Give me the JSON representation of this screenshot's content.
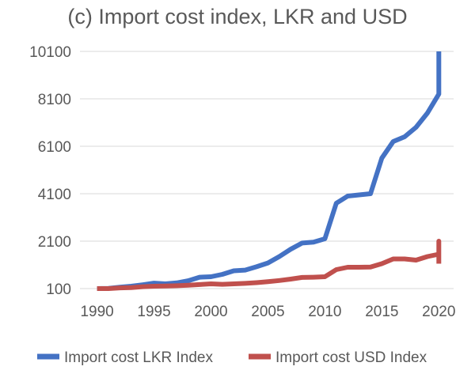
{
  "chart_data": {
    "type": "line",
    "title": "(c) Import cost index, LKR and USD",
    "xlabel": "",
    "ylabel": "",
    "x_ticks": [
      1990,
      1995,
      2000,
      2005,
      2010,
      2015,
      2020
    ],
    "y_ticks": [
      100,
      2100,
      4100,
      6100,
      8100,
      10100
    ],
    "xlim": [
      1988.5,
      2021.3
    ],
    "ylim": [
      100,
      10100
    ],
    "grid": true,
    "legend_position": "bottom",
    "series": [
      {
        "name": "Import cost LKR Index",
        "color": "#4472c4",
        "points": [
          [
            1990,
            100
          ],
          [
            1991,
            110
          ],
          [
            1992,
            160
          ],
          [
            1993,
            200
          ],
          [
            1994,
            260
          ],
          [
            1995,
            330
          ],
          [
            1996,
            300
          ],
          [
            1997,
            340
          ],
          [
            1998,
            430
          ],
          [
            1999,
            580
          ],
          [
            2000,
            600
          ],
          [
            2001,
            700
          ],
          [
            2002,
            850
          ],
          [
            2003,
            880
          ],
          [
            2004,
            1020
          ],
          [
            2005,
            1180
          ],
          [
            2006,
            1450
          ],
          [
            2007,
            1760
          ],
          [
            2008,
            2020
          ],
          [
            2009,
            2060
          ],
          [
            2010,
            2200
          ],
          [
            2011,
            3700
          ],
          [
            2012,
            4000
          ],
          [
            2013,
            4050
          ],
          [
            2014,
            4100
          ],
          [
            2015,
            5600
          ],
          [
            2016,
            6300
          ],
          [
            2017,
            6500
          ],
          [
            2018,
            6900
          ],
          [
            2019,
            7500
          ],
          [
            2020,
            8300
          ],
          [
            2020,
            10100
          ]
        ]
      },
      {
        "name": "Import cost USD Index",
        "color": "#c0504d",
        "points": [
          [
            1990,
            100
          ],
          [
            1991,
            100
          ],
          [
            1992,
            130
          ],
          [
            1993,
            140
          ],
          [
            1994,
            180
          ],
          [
            1995,
            200
          ],
          [
            1996,
            210
          ],
          [
            1997,
            220
          ],
          [
            1998,
            240
          ],
          [
            1999,
            270
          ],
          [
            2000,
            300
          ],
          [
            2001,
            280
          ],
          [
            2002,
            300
          ],
          [
            2003,
            320
          ],
          [
            2004,
            350
          ],
          [
            2005,
            390
          ],
          [
            2006,
            440
          ],
          [
            2007,
            500
          ],
          [
            2008,
            570
          ],
          [
            2009,
            580
          ],
          [
            2010,
            600
          ],
          [
            2011,
            900
          ],
          [
            2012,
            1000
          ],
          [
            2013,
            1000
          ],
          [
            2014,
            1010
          ],
          [
            2015,
            1150
          ],
          [
            2016,
            1350
          ],
          [
            2017,
            1350
          ],
          [
            2018,
            1300
          ],
          [
            2019,
            1450
          ],
          [
            2020,
            1550
          ],
          [
            2020,
            2100
          ],
          [
            2020,
            1150
          ]
        ]
      }
    ]
  }
}
